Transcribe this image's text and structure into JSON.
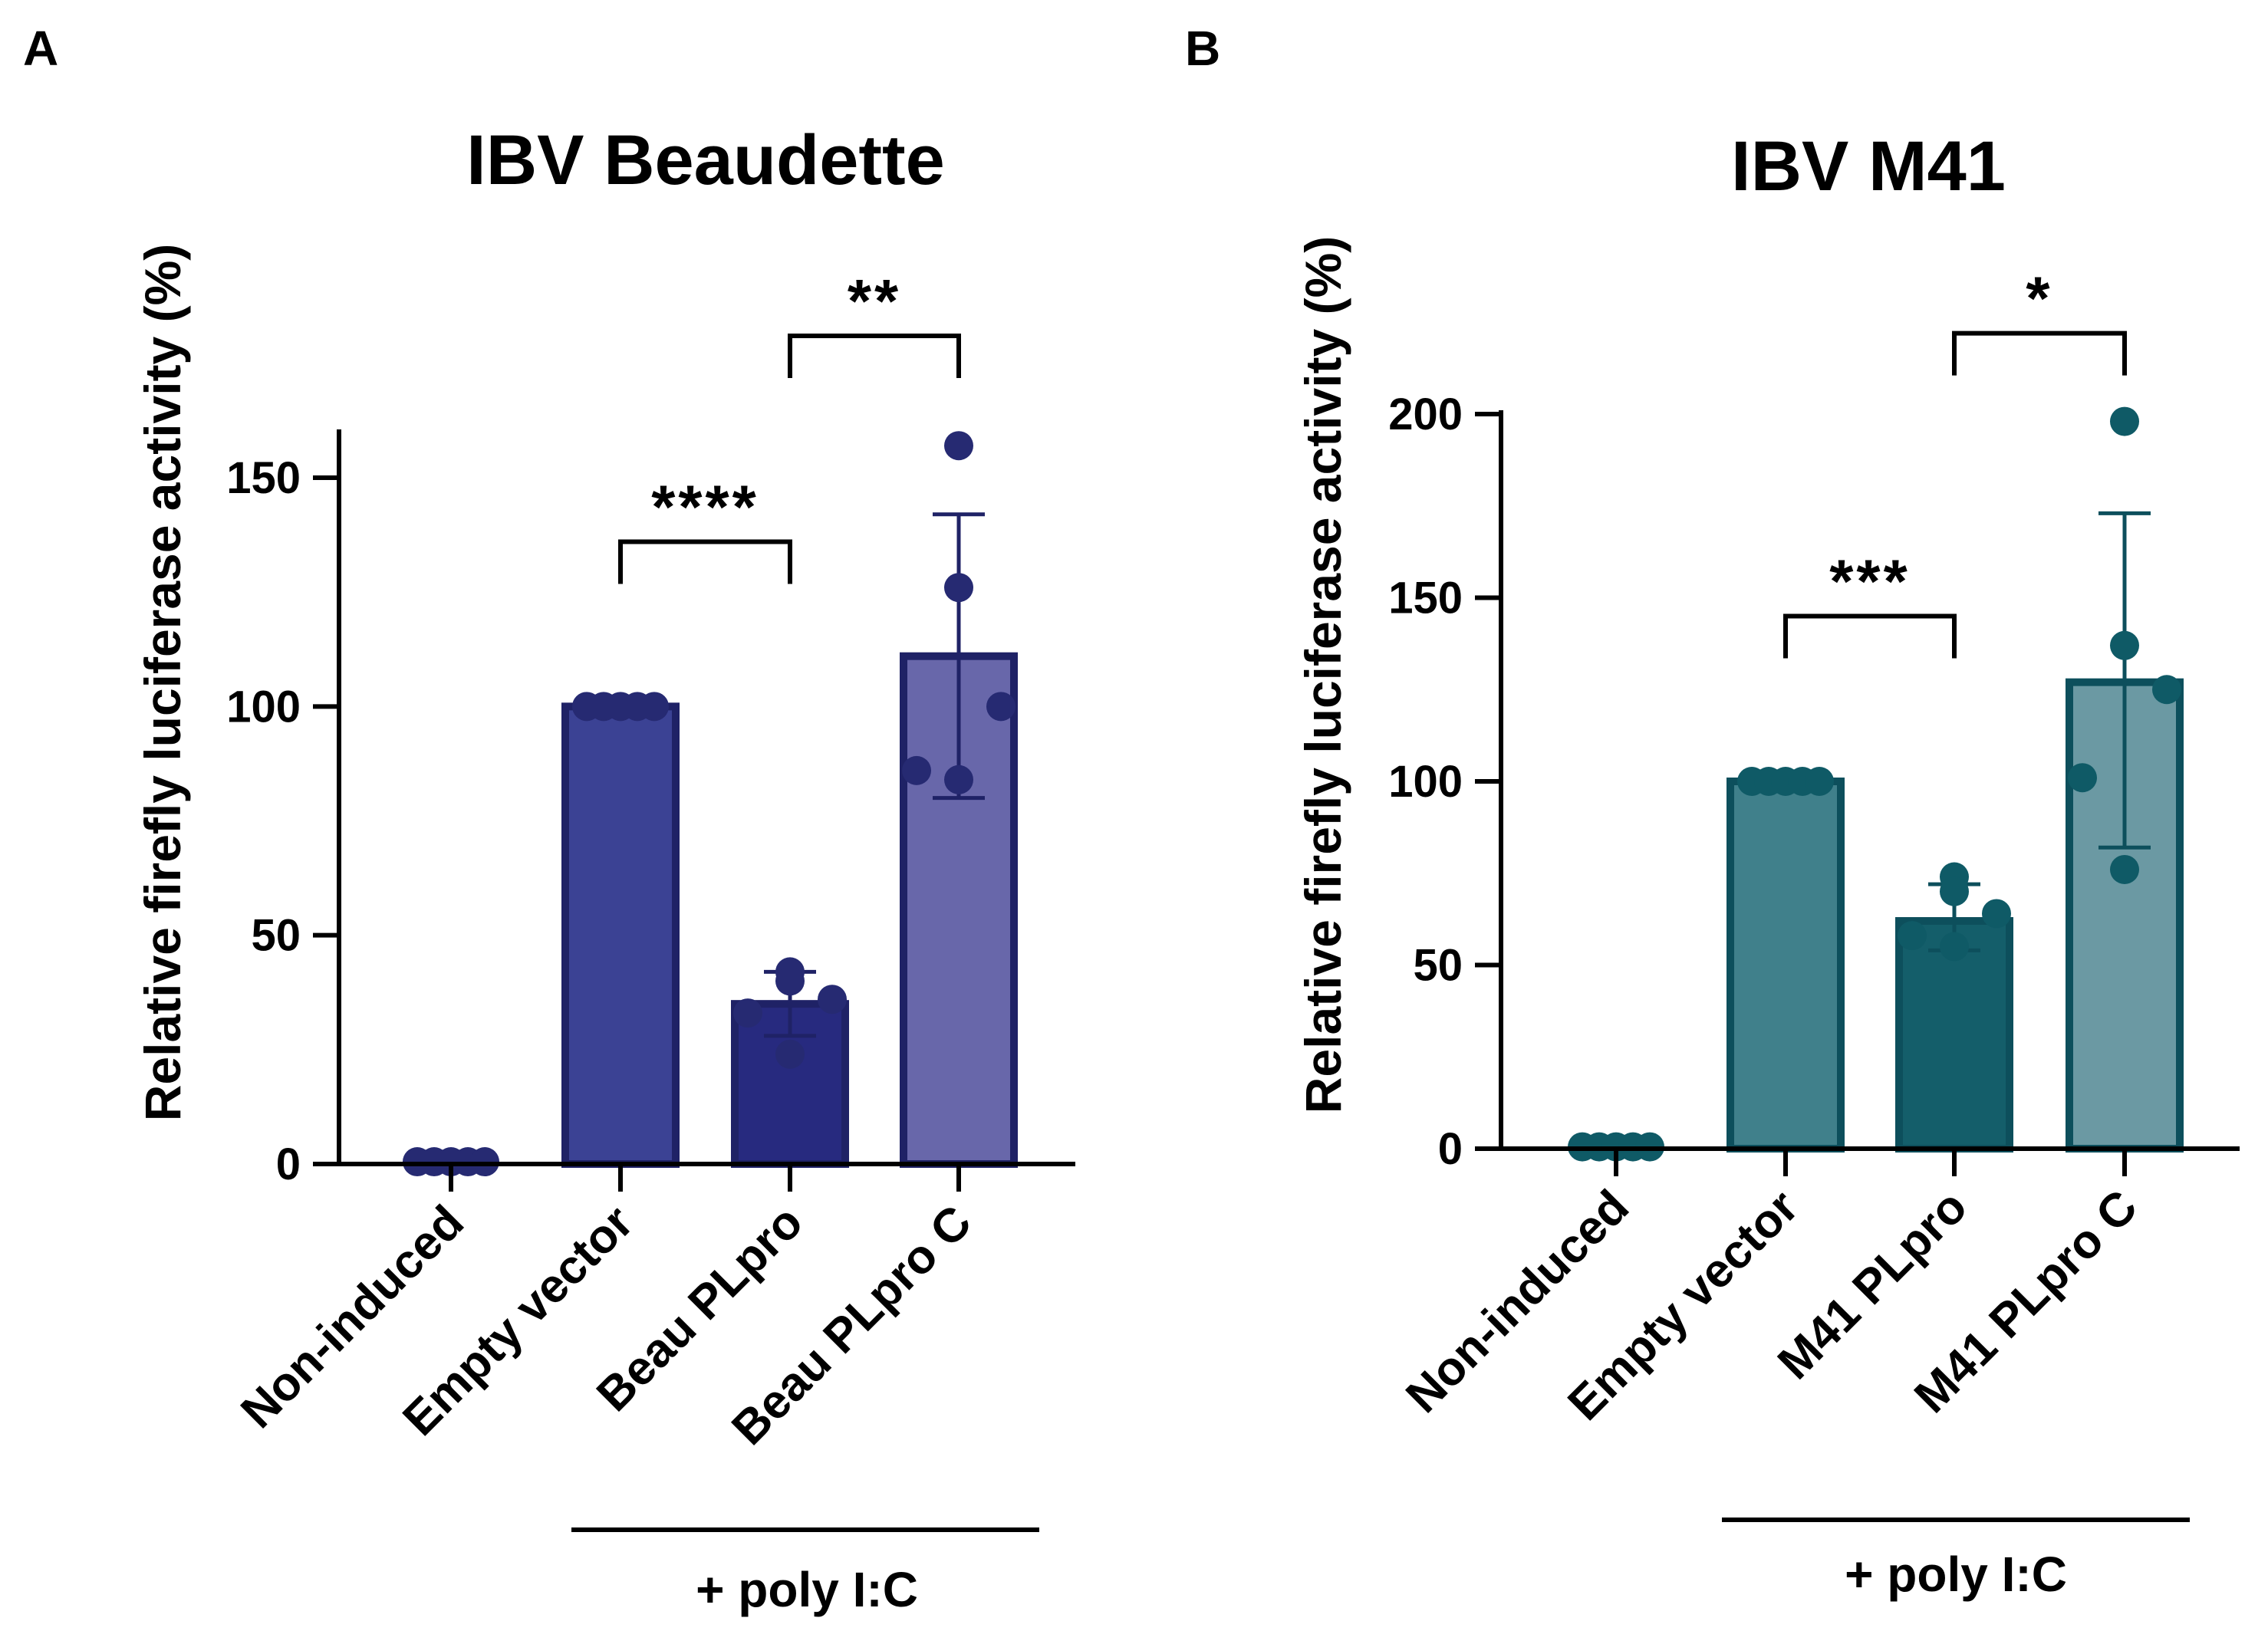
{
  "panels": [
    {
      "letter": "A",
      "chart_data": {
        "type": "bar",
        "title": "IBV Beaudette",
        "ylabel": "Relative firefly luciferase activity (%)",
        "xlabel": "",
        "ylim": [
          0,
          160
        ],
        "yticks": [
          0,
          50,
          100,
          150
        ],
        "categories": [
          "Non-induced",
          "Empty vector",
          "Beau PLpro",
          "Beau PLpro C"
        ],
        "values": [
          0,
          100,
          35,
          111
        ],
        "error_upper": [
          0,
          0,
          42,
          142
        ],
        "error_lower": [
          0,
          0,
          28,
          80
        ],
        "points": [
          [
            0.5,
            0.5,
            0.5,
            0.5,
            0.5
          ],
          [
            100,
            100,
            100,
            100,
            100
          ],
          [
            42,
            40,
            36,
            33,
            24
          ],
          [
            157,
            126,
            100,
            86,
            84
          ]
        ],
        "colors": [
          "#2b2f7f",
          "#3b4294",
          "#272a7f",
          "#6867aa"
        ],
        "edge_color": "#1f2266",
        "point_color": "#262a72",
        "significance": [
          {
            "from": 1,
            "to": 2,
            "label": "****",
            "y": 136
          },
          {
            "from": 2,
            "to": 3,
            "label": "**",
            "y": 181
          }
        ],
        "group_label": "+ poly I:C"
      }
    },
    {
      "letter": "B",
      "chart_data": {
        "type": "bar",
        "title": "IBV M41",
        "ylabel": "Relative firefly luciferase activity (%)",
        "xlabel": "",
        "ylim": [
          0,
          200
        ],
        "yticks": [
          0,
          50,
          100,
          150,
          200
        ],
        "categories": [
          "Non-induced",
          "Empty vector",
          "M41 PLpro",
          "M41 PLpro C"
        ],
        "values": [
          0,
          100,
          62,
          127
        ],
        "error_upper": [
          0,
          0,
          72,
          173
        ],
        "error_lower": [
          0,
          0,
          54,
          82
        ],
        "points": [
          [
            0.5,
            0.5,
            0.5,
            0.5,
            0.5
          ],
          [
            100,
            100,
            100,
            100,
            100
          ],
          [
            74,
            70,
            64,
            58,
            55
          ],
          [
            198,
            137,
            125,
            101,
            76
          ]
        ],
        "colors": [
          "#0f5a66",
          "#40808b",
          "#145e6a",
          "#6b99a3"
        ],
        "edge_color": "#0d4f5c",
        "point_color": "#0f5a66",
        "significance": [
          {
            "from": 1,
            "to": 2,
            "label": "***",
            "y": 145
          },
          {
            "from": 2,
            "to": 3,
            "label": "*",
            "y": 222
          }
        ],
        "group_label": "+ poly I:C"
      }
    }
  ]
}
